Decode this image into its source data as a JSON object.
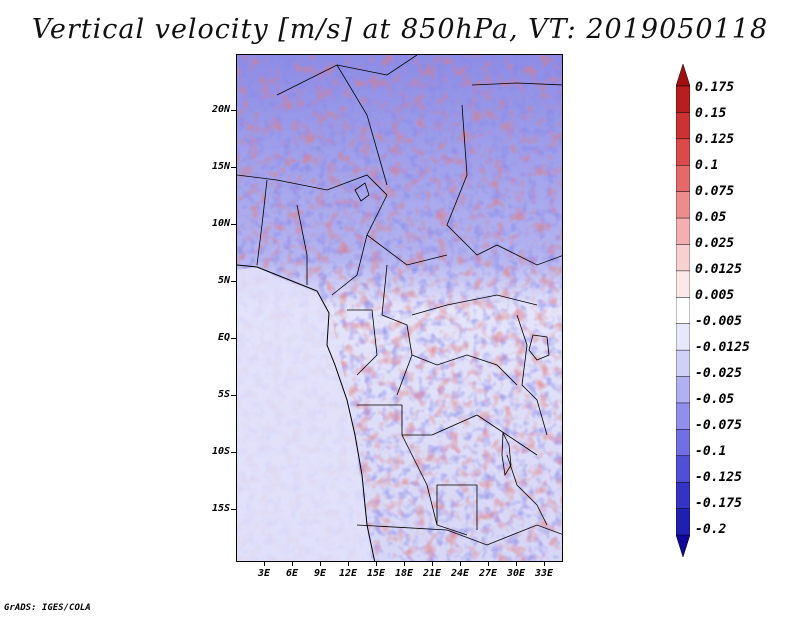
{
  "title": "Vertical velocity [m/s] at 850hPa, VT: 2019050118",
  "credit": "GrADS: IGES/COLA",
  "map": {
    "lat_labels": [
      "20N",
      "15N",
      "10N",
      "5N",
      "EQ",
      "5S",
      "10S",
      "15S"
    ],
    "lon_labels": [
      "3E",
      "6E",
      "9E",
      "12E",
      "15E",
      "18E",
      "21E",
      "24E",
      "27E",
      "30E",
      "33E"
    ],
    "lon_range": [
      0,
      35
    ],
    "lat_range": [
      -20,
      25
    ]
  },
  "colorbar": {
    "levels": [
      "0.175",
      "0.15",
      "0.125",
      "0.1",
      "0.075",
      "0.05",
      "0.025",
      "0.0125",
      "0.005",
      "-0.005",
      "-0.0125",
      "-0.025",
      "-0.05",
      "-0.075",
      "-0.1",
      "-0.125",
      "-0.175",
      "-0.2"
    ],
    "colors": [
      "#a01010",
      "#b81e1e",
      "#cc3232",
      "#da4a4a",
      "#e46a6a",
      "#ec8c8c",
      "#f4b0b0",
      "#f8d0d0",
      "#fce8e8",
      "#ffffff",
      "#e8e8fc",
      "#d0d0f8",
      "#b0b0f2",
      "#9090ec",
      "#7070e4",
      "#5050d6",
      "#3434c4",
      "#2020b0",
      "#100898"
    ]
  }
}
